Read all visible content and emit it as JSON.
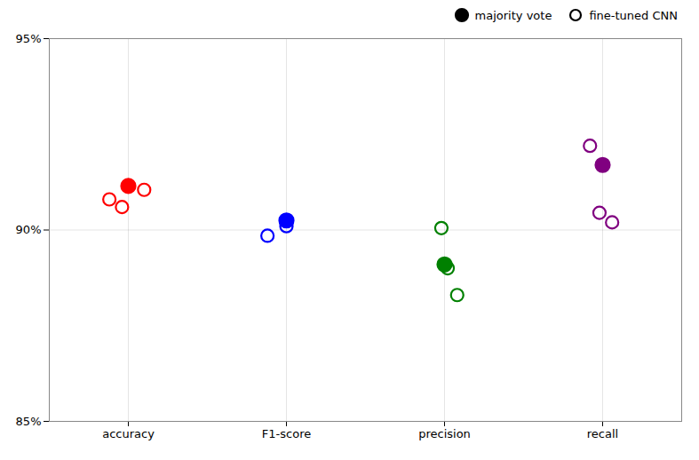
{
  "chart_data": {
    "type": "scatter",
    "xlim": [
      -0.5,
      3.5
    ],
    "xticks": [
      {
        "value": 0,
        "label": "accuracy"
      },
      {
        "value": 1,
        "label": "F1-score"
      },
      {
        "value": 2,
        "label": "precision"
      },
      {
        "value": 3,
        "label": "recall"
      }
    ],
    "ylim": [
      85,
      95
    ],
    "yticks": [
      {
        "value": 85,
        "label": "85%"
      },
      {
        "value": 90,
        "label": "90%"
      },
      {
        "value": 95,
        "label": "95%"
      }
    ],
    "grid": true,
    "legend": "upper right",
    "series": [
      {
        "name": "majority vote",
        "marker": "filled",
        "x": [
          0.0,
          1.0,
          2.0,
          3.0
        ],
        "values": [
          91.15,
          90.25,
          89.1,
          91.7
        ],
        "colors": [
          "red",
          "blue",
          "green",
          "purple"
        ]
      },
      {
        "name": "fine-tuned CNN",
        "marker": "open",
        "x": [
          -0.12,
          -0.04,
          0.1,
          0.88,
          1.0,
          1.98,
          2.02,
          2.08,
          2.92,
          2.98,
          3.06
        ],
        "values": [
          90.8,
          90.6,
          91.05,
          89.85,
          90.1,
          90.05,
          89.0,
          88.3,
          92.2,
          90.45,
          90.2
        ],
        "colors": [
          "red",
          "red",
          "red",
          "blue",
          "blue",
          "green",
          "green",
          "green",
          "purple",
          "purple",
          "purple"
        ]
      }
    ]
  }
}
